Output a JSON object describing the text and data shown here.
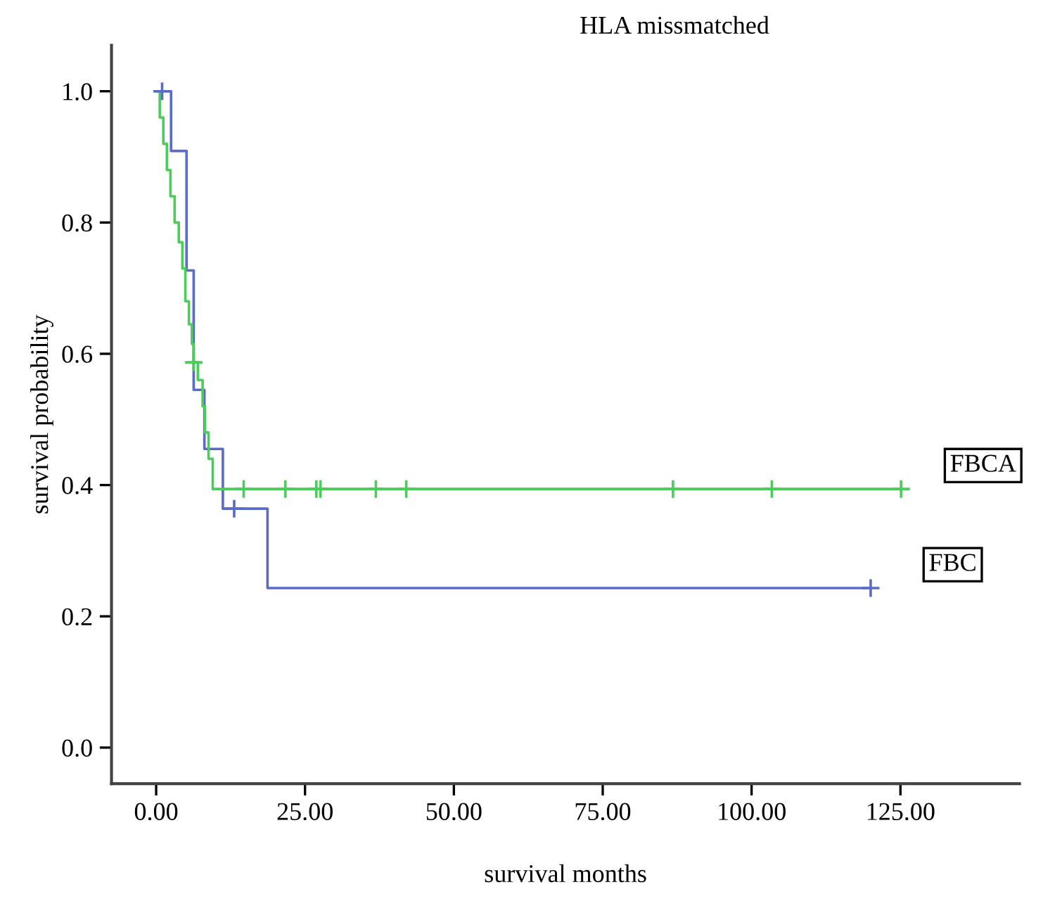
{
  "chart_data": {
    "type": "step",
    "title": "HLA missmatched",
    "xlabel": "survival months",
    "ylabel": "survival probability",
    "xlim": [
      -7.5,
      145
    ],
    "xticks": [
      {
        "value": 0,
        "label": "0.00"
      },
      {
        "value": 25,
        "label": "25.00"
      },
      {
        "value": 50,
        "label": "50.00"
      },
      {
        "value": 75,
        "label": "75.00"
      },
      {
        "value": 100,
        "label": "100.00"
      },
      {
        "value": 125,
        "label": "125.00"
      }
    ],
    "ylim": [
      -0.055,
      1.07
    ],
    "yticks": [
      {
        "value": 0,
        "label": "0.0"
      },
      {
        "value": 0.2,
        "label": "0.2"
      },
      {
        "value": 0.4,
        "label": "0.4"
      },
      {
        "value": 0.6,
        "label": "0.6"
      },
      {
        "value": 0.8,
        "label": "0.8"
      },
      {
        "value": 1,
        "label": "1.0"
      }
    ],
    "grid": false,
    "series": [
      {
        "name": "FBC",
        "color": "#5b6bc8",
        "x": [
          0,
          2.5,
          5.1,
          6.3,
          8.1,
          11.2,
          18.7,
          120
        ],
        "values": [
          1.0,
          0.909,
          0.727,
          0.545,
          0.455,
          0.364,
          0.243,
          0.243
        ]
      },
      {
        "name": "FBCA",
        "color": "#4ccc5a",
        "x": [
          0,
          0.6,
          1.2,
          1.8,
          2.4,
          3.1,
          3.8,
          4.4,
          4.9,
          5.5,
          6.0,
          6.3,
          7.0,
          7.8,
          8.2,
          8.8,
          9.5,
          125.1
        ],
        "values": [
          1.0,
          0.96,
          0.92,
          0.88,
          0.84,
          0.8,
          0.77,
          0.73,
          0.68,
          0.645,
          0.615,
          0.587,
          0.56,
          0.52,
          0.48,
          0.44,
          0.394,
          0.394
        ]
      },
      {
        "type": "scatter",
        "marker": "cross",
        "color": "#5b6bc8",
        "x": [
          1.0,
          13.1,
          120
        ],
        "values": [
          1.0,
          0.364,
          0.243
        ]
      },
      {
        "type": "scatter",
        "marker": "cross",
        "color": "#4ccc5a",
        "x": [
          6.3,
          14.7,
          21.7,
          26.9,
          27.6,
          36.9,
          42.0,
          86.8,
          103.4,
          125.1
        ],
        "values": [
          0.587,
          0.394,
          0.394,
          0.394,
          0.394,
          0.394,
          0.394,
          0.394,
          0.394,
          0.394
        ]
      }
    ]
  }
}
